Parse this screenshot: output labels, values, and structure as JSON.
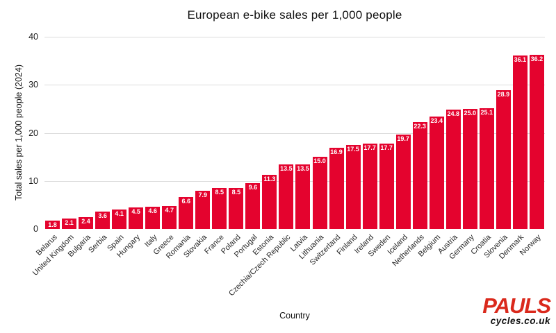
{
  "chart_data": {
    "type": "bar",
    "title": "European e-bike sales per 1,000 people",
    "xlabel": "Country",
    "ylabel": "Total sales per 1,000 people (2024)",
    "ylim": [
      0,
      40
    ],
    "yticks": [
      0,
      10,
      20,
      30,
      40
    ],
    "grid": true,
    "legend": "none",
    "bar_color": "#e4032e",
    "gridline_color": "#dcdcdc",
    "value_label_color": "#ffffff",
    "categories": [
      "Belarus",
      "United Kingdom",
      "Bulgaria",
      "Serbia",
      "Spain",
      "Hungary",
      "Italy",
      "Greece",
      "Romania",
      "Slovakia",
      "France",
      "Poland",
      "Portugal",
      "Estonia",
      "Czechia/Czech Republic",
      "Latvia",
      "Lithuania",
      "Switzerland",
      "Finland",
      "Ireland",
      "Sweden",
      "Iceland",
      "Netherlands",
      "Belgium",
      "Austria",
      "Germany",
      "Croatia",
      "Slovenia",
      "Denmark",
      "Norway"
    ],
    "values": [
      1.8,
      2.1,
      2.4,
      3.6,
      4.1,
      4.5,
      4.6,
      4.7,
      6.6,
      7.9,
      8.5,
      8.5,
      9.6,
      11.3,
      13.5,
      13.5,
      15.0,
      16.9,
      17.5,
      17.7,
      17.7,
      19.7,
      22.3,
      23.4,
      24.8,
      25.0,
      25.1,
      28.9,
      36.1,
      36.2
    ]
  },
  "branding": {
    "name": "PAULS",
    "domain": "cycles.co.uk",
    "name_color": "#da291c",
    "domain_color": "#111111"
  }
}
